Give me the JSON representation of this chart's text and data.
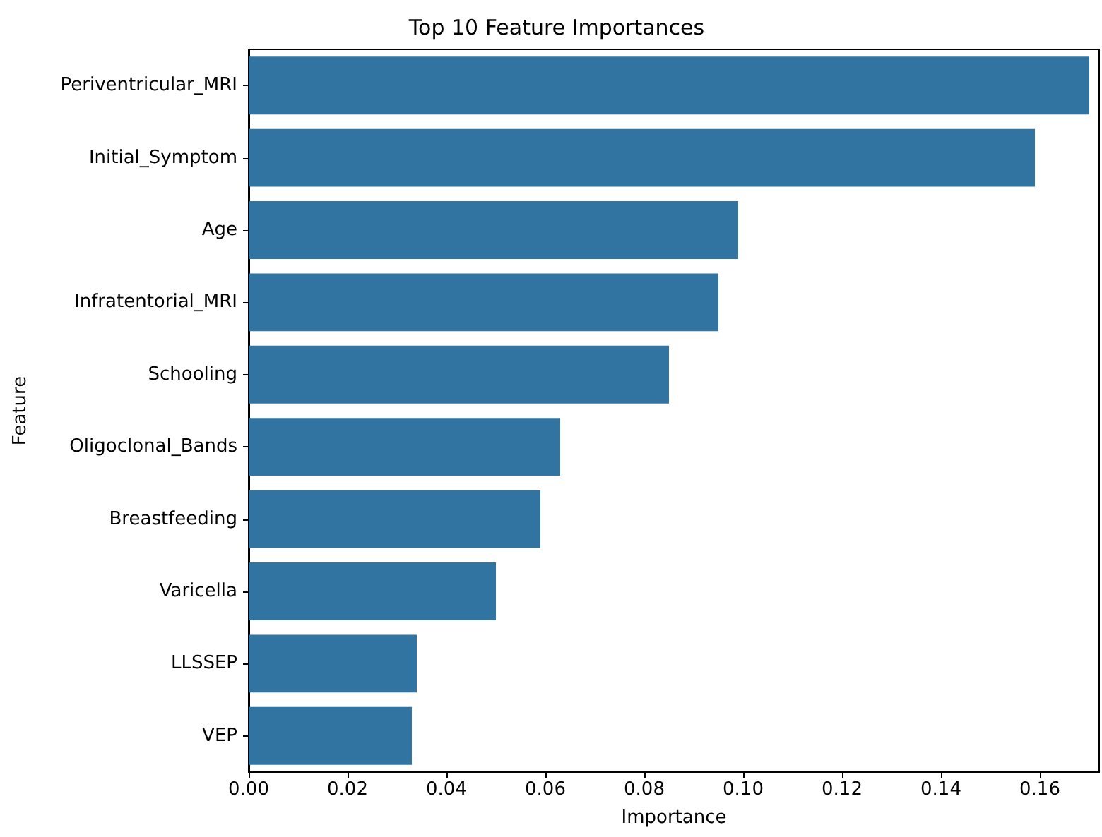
{
  "chart_data": {
    "type": "bar",
    "orientation": "horizontal",
    "title": "Top 10 Feature Importances",
    "xlabel": "Importance",
    "ylabel": "Feature",
    "categories": [
      "Periventricular_MRI",
      "Initial_Symptom",
      "Age",
      "Infratentorial_MRI",
      "Schooling",
      "Oligoclonal_Bands",
      "Breastfeeding",
      "Varicella",
      "LLSSEP",
      "VEP"
    ],
    "values": [
      0.17,
      0.159,
      0.099,
      0.095,
      0.085,
      0.063,
      0.059,
      0.05,
      0.034,
      0.033
    ],
    "color": "#3274a1",
    "xlim": [
      0,
      0.172
    ],
    "xticks": [
      {
        "value": 0,
        "label": "0.00"
      },
      {
        "value": 0.02,
        "label": "0.02"
      },
      {
        "value": 0.04,
        "label": "0.04"
      },
      {
        "value": 0.06,
        "label": "0.06"
      },
      {
        "value": 0.08,
        "label": "0.08"
      },
      {
        "value": 0.1,
        "label": "0.10"
      },
      {
        "value": 0.12,
        "label": "0.12"
      },
      {
        "value": 0.14,
        "label": "0.14"
      },
      {
        "value": 0.16,
        "label": "0.16"
      }
    ],
    "grid": false
  }
}
